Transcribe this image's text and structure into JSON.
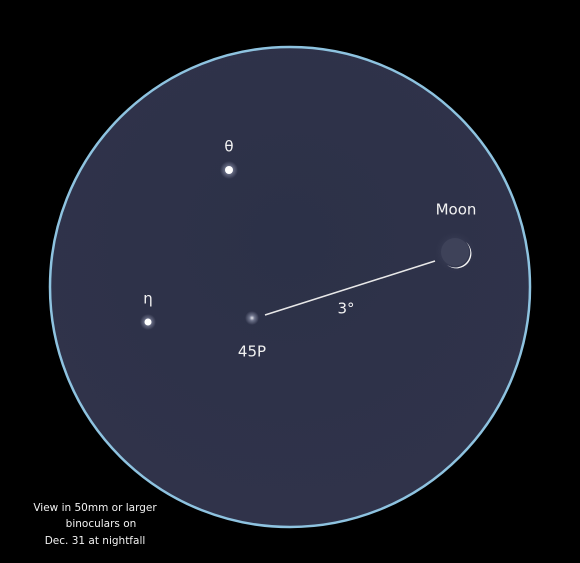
{
  "labels": {
    "theta": "θ",
    "eta": "η",
    "comet": "45P",
    "moon": "Moon",
    "separation": "3°"
  },
  "caption": {
    "lines": [
      "View in 50mm or larger",
      "binoculars on",
      "Dec. 31 at nightfall"
    ]
  }
}
